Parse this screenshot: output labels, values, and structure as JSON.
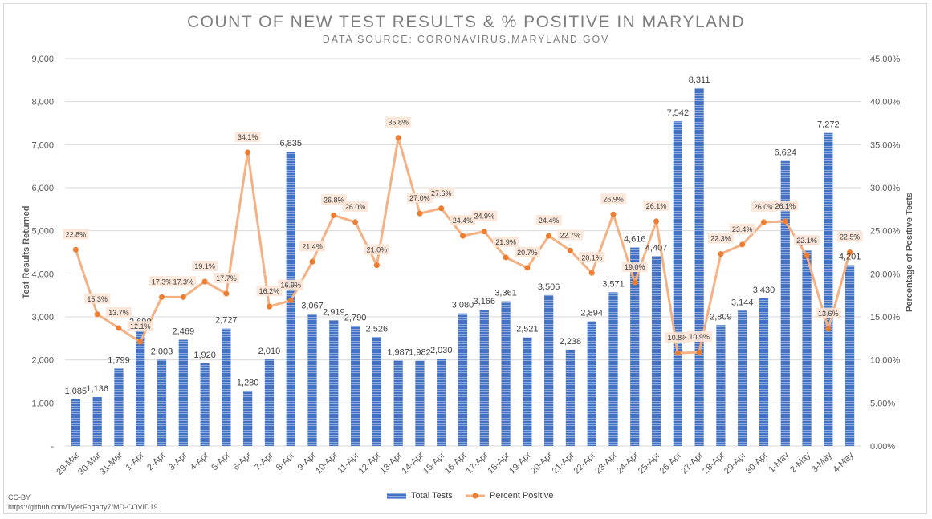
{
  "title": "COUNT OF NEW TEST RESULTS & % POSITIVE IN MARYLAND",
  "subtitle": "DATA SOURCE: CORONAVIRUS.MARYLAND.GOV",
  "credit": {
    "license": "CC-BY",
    "url": "https://github.com/TylerFogarty7/MD-COVID19"
  },
  "colors": {
    "bar": "#4472c4",
    "line": "#f4b183",
    "marker": "#ed7d31",
    "label_bg": "#fbe5d6",
    "grid": "#d9d9d9",
    "text": "#404040"
  },
  "chart_data": {
    "type": "bar",
    "categories": [
      "29-Mar",
      "30-Mar",
      "31-Mar",
      "1-Apr",
      "2-Apr",
      "3-Apr",
      "4-Apr",
      "5-Apr",
      "6-Apr",
      "7-Apr",
      "8-Apr",
      "9-Apr",
      "10-Apr",
      "11-Apr",
      "12-Apr",
      "13-Apr",
      "14-Apr",
      "15-Apr",
      "16-Apr",
      "17-Apr",
      "18-Apr",
      "19-Apr",
      "20-Apr",
      "21-Apr",
      "22-Apr",
      "23-Apr",
      "24-Apr",
      "25-Apr",
      "26-Apr",
      "27-Apr",
      "28-Apr",
      "29-Apr",
      "30-Apr",
      "1-May",
      "2-May",
      "3-May",
      "4-May"
    ],
    "series": [
      {
        "name": "Total Tests",
        "type": "bar",
        "axis": "left",
        "values": [
          1085,
          1136,
          1799,
          2690,
          2003,
          2469,
          1920,
          2727,
          1280,
          2010,
          6835,
          3067,
          2919,
          2790,
          2526,
          1987,
          1982,
          2030,
          3080,
          3166,
          3361,
          2521,
          3506,
          2238,
          2894,
          3571,
          4616,
          4407,
          7542,
          8311,
          2809,
          3144,
          3430,
          6624,
          4539,
          7272,
          4201
        ],
        "labels": [
          "1,085",
          "1,136",
          "1,799",
          "2,690",
          "2,003",
          "2,469",
          "1,920",
          "2,727",
          "1,280",
          "2,010",
          "6,835",
          "3,067",
          "2,919",
          "2,790",
          "2,526",
          "1,987",
          "1,982",
          "2,030",
          "3,080",
          "3,166",
          "3,361",
          "2,521",
          "3,506",
          "2,238",
          "2,894",
          "3,571",
          "4,616",
          "4,407",
          "7,542",
          "8,311",
          "2,809",
          "3,144",
          "3,430",
          "6,624",
          "4,539",
          "7,272",
          "4,201"
        ]
      },
      {
        "name": "Percent Positive",
        "type": "line",
        "axis": "right",
        "values": [
          22.8,
          15.3,
          13.7,
          12.1,
          17.3,
          17.3,
          19.1,
          17.7,
          34.1,
          16.2,
          16.9,
          21.4,
          26.8,
          26.0,
          21.0,
          35.8,
          27.0,
          27.6,
          24.4,
          24.9,
          21.9,
          20.7,
          24.4,
          22.7,
          20.1,
          26.9,
          19.0,
          26.1,
          10.8,
          10.9,
          22.3,
          23.4,
          26.0,
          26.1,
          22.1,
          13.6,
          22.5
        ],
        "labels": [
          "22.8%",
          "15.3%",
          "13.7%",
          "12.1%",
          "17.3%",
          "17.3%",
          "19.1%",
          "17.7%",
          "34.1%",
          "16.2%",
          "16.9%",
          "21.4%",
          "26.8%",
          "26.0%",
          "21.0%",
          "35.8%",
          "27.0%",
          "27.6%",
          "24.4%",
          "24.9%",
          "21.9%",
          "20.7%",
          "24.4%",
          "22.7%",
          "20.1%",
          "26.9%",
          "19.0%",
          "26.1%",
          "10.8%",
          "10.9%",
          "22.3%",
          "23.4%",
          "26.0%",
          "26.1%",
          "22.1%",
          "13.6%",
          "22.5%"
        ]
      }
    ],
    "ylabel": "Test Results Returned",
    "y2label": "Percentage of Positive Tests",
    "ylim": [
      0,
      9000
    ],
    "y2lim": [
      0,
      45
    ],
    "yticks": [
      "-",
      "1,000",
      "2,000",
      "3,000",
      "4,000",
      "5,000",
      "6,000",
      "7,000",
      "8,000",
      "9,000"
    ],
    "y2ticks": [
      "0.00%",
      "5.00%",
      "10.00%",
      "15.00%",
      "20.00%",
      "25.00%",
      "30.00%",
      "35.00%",
      "40.00%",
      "45.00%"
    ],
    "grid": true,
    "legend": "bottom"
  }
}
